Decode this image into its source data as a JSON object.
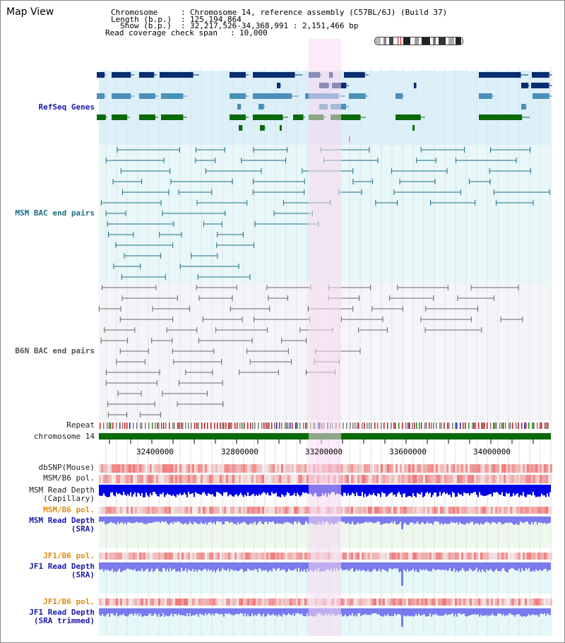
{
  "view": {
    "title": "Map View",
    "info_lines": [
      {
        "label": "Chromosome",
        "value": "Chromosome 14, reference assembly (C57BL/6J) (Build 37)"
      },
      {
        "label": "Length (b.p.)",
        "value": "125,194,864"
      },
      {
        "label": "Show (b.p.)",
        "value": "32,217,526-34,368,991 : 2,151,466 bp"
      },
      {
        "label": "Read coverage check span",
        "value": "10,000"
      }
    ]
  },
  "tracks": {
    "refseq": "RefSeq Genes",
    "msm_bac": "MSM BAC end pairs",
    "b6n_bac": "B6N BAC end pairs",
    "repeat": "Repeat",
    "chromosome": "chromosome 14",
    "dbsnp": "dbSNP(Mouse)",
    "msm_b6_pol": "MSM/B6 pol.",
    "msm_depth_cap": [
      "MSM Read Depth",
      "(Capillary)"
    ],
    "msm_b6_pol_2": "MSM/B6 pol.",
    "msm_depth_sra": [
      "MSM Read Depth",
      "(SRA)"
    ],
    "jf1_b6_pol": "JF1/B6 pol.",
    "jf1_depth_sra": [
      "JF1 Read Depth",
      "(SRA)"
    ],
    "jf1_b6_pol_2": "JF1/B6 pol.",
    "jf1_depth_trim": [
      "JF1 Read Depth",
      "(SRA trimmed)"
    ]
  },
  "axis": {
    "ticks": [
      "32400000",
      "32800000",
      "33200000",
      "33600000",
      "34000000"
    ]
  },
  "colors": {
    "refseq_bg": "#dcf0fa",
    "msm_bg": "#e8f7f8",
    "b6n_bg": "#f3f5f8",
    "highlight": "#f8d8f0",
    "chromosome_bar": "#0a6a0a",
    "depth_blue": "#0000e8",
    "depth_light": "#7a7aee"
  }
}
